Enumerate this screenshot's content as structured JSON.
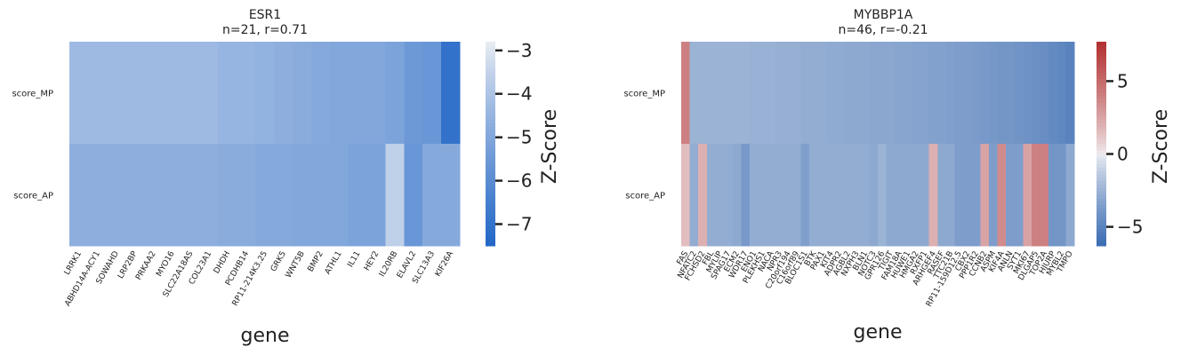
{
  "chart_data": [
    {
      "type": "heatmap",
      "title": "ESR1",
      "subtitle": "n=21, r=0.71",
      "rows": [
        "score_MP",
        "score_AP"
      ],
      "columns": [
        "LRRK1",
        "ABHD14A-ACY1",
        "SOWAHD",
        "LRP2BP",
        "PRKAA2",
        "MYO16",
        "SLC22A18AS",
        "COL23A1",
        "DHDH",
        "PCDHB14",
        "RP11-214K3.25",
        "GRK5",
        "WNT5B",
        "BMP2",
        "ATHL1",
        "IL11",
        "HEY2",
        "IL20RB",
        "ELAVL2",
        "SLC13A3",
        "KIF26A"
      ],
      "values": [
        [
          -4.3,
          -4.3,
          -4.3,
          -4.3,
          -4.3,
          -4.3,
          -4.3,
          -4.3,
          -4.5,
          -4.5,
          -4.6,
          -4.7,
          -4.8,
          -4.9,
          -5.0,
          -5.0,
          -5.0,
          -5.1,
          -5.5,
          -5.6,
          -7.0
        ],
        [
          -4.7,
          -4.7,
          -4.7,
          -4.7,
          -4.7,
          -4.7,
          -4.7,
          -4.7,
          -4.8,
          -4.8,
          -4.9,
          -4.9,
          -5.0,
          -5.0,
          -5.0,
          -5.1,
          -5.1,
          -3.6,
          -5.6,
          -4.9,
          -4.9
        ]
      ],
      "xlabel": "gene",
      "colorbar_label": "Z-Score",
      "colorbar_range": [
        -7.5,
        -2.8
      ],
      "colorbar_ticks": [
        -3,
        -4,
        -5,
        -6,
        -7
      ],
      "colormap": {
        "low": "#2166c6",
        "mid": "#f2f2f4",
        "high": "#b22f2f",
        "center": -2.8
      }
    },
    {
      "type": "heatmap",
      "title": "MYBBP1A",
      "subtitle": "n=46, r=-0.21",
      "rows": [
        "score_MP",
        "score_AP"
      ],
      "columns": [
        "FAS",
        "NFATC2",
        "FCHSD2",
        "FBL",
        "MYLIP",
        "SPAG17",
        "ECM2",
        "WDR17",
        "ENO1",
        "PLEKHS1",
        "NACA",
        "NPR3",
        "C20orf194",
        "C16orf89",
        "BLOC1S1",
        "BTK",
        "PAX1",
        "KIT4",
        "ADPR2",
        "AGBL2",
        "NXPH3",
        "BLN1",
        "NOTC3",
        "GPR126",
        "TIGIT",
        "FAM18A",
        "HUWE1",
        "HMGA2",
        "RXFP1",
        "ARHGEF4",
        "RASEF",
        "TTC21B",
        "RP11-159D12.5",
        "CBX2",
        "PPP1R2",
        "CCNB2",
        "ASPM",
        "KIF4A",
        "ANLN",
        "SYT1",
        "MKI67",
        "DLGAP5",
        "TOP2A",
        "HJURP",
        "MYBL2",
        "TMPO"
      ],
      "col_labels": [
        "FAS",
        "NFATC2",
        "FCHSD2",
        "FBL",
        "MYLIP",
        "SPAG17",
        "ECM2",
        "WDR17",
        "ENO1",
        "PLEKHS1",
        "NACA",
        "NPR3",
        "C20orf194",
        "C16orf89",
        "BLOC1S1",
        "BTK",
        "PAX1",
        "KIT4",
        "ADPR2",
        "AGBL2",
        "NXPH3",
        "BLN1",
        "NOTC3",
        "GPR126",
        "TIGIT",
        "FAM18A",
        "HUWE1",
        "HMGA2",
        "RXFP1",
        "ARHGEF4",
        "RASEF",
        "TTC21B",
        "RP11-159D12.5",
        "CBX2",
        "PPP1R2",
        "CCNB2",
        "ASPM",
        "KIF4A",
        "ANLN",
        "SYT1",
        "MKI67",
        "DLGAP5",
        "TOP2A",
        "HJURP",
        "MYBL2",
        "TMPO"
      ],
      "values": [
        [
          4.0,
          -2.5,
          -2.5,
          -2.5,
          -2.5,
          -2.5,
          -2.5,
          -2.5,
          -2.6,
          -2.6,
          -2.6,
          -2.7,
          -2.7,
          -2.7,
          -2.8,
          -2.8,
          -2.8,
          -2.9,
          -2.9,
          -3.0,
          -3.0,
          -3.0,
          -3.1,
          -3.1,
          -3.1,
          -3.2,
          -3.2,
          -3.3,
          -3.3,
          -3.4,
          -3.4,
          -3.5,
          -3.6,
          -3.6,
          -3.7,
          -3.8,
          -3.9,
          -4.0,
          -4.0,
          -4.1,
          -4.2,
          -4.3,
          -4.4,
          -4.6,
          -4.8,
          -5.0
        ],
        [
          1.5,
          -2.8,
          2.0,
          -2.8,
          -2.8,
          -2.8,
          -3.0,
          -3.8,
          -2.8,
          -2.8,
          -2.8,
          -2.8,
          -2.8,
          -2.8,
          -3.5,
          -2.8,
          -2.8,
          -2.8,
          -2.8,
          -2.8,
          -2.8,
          -2.8,
          -3.0,
          -2.5,
          -3.0,
          -3.0,
          -3.0,
          -3.0,
          -3.0,
          2.0,
          -3.0,
          -3.0,
          -3.6,
          -3.6,
          -3.6,
          2.5,
          -3.6,
          3.5,
          -3.6,
          -3.6,
          2.5,
          4.0,
          4.0,
          -4.0,
          -4.0,
          -3.0
        ]
      ],
      "xlabel": "gene",
      "colorbar_label": "Z-Score",
      "colorbar_range": [
        -6.3,
        7.7
      ],
      "colorbar_ticks": [
        5,
        0,
        -5
      ],
      "colormap": {
        "low": "#3a6cb3",
        "mid": "#f2f2f4",
        "high": "#b22f2f",
        "center": 0
      }
    }
  ]
}
